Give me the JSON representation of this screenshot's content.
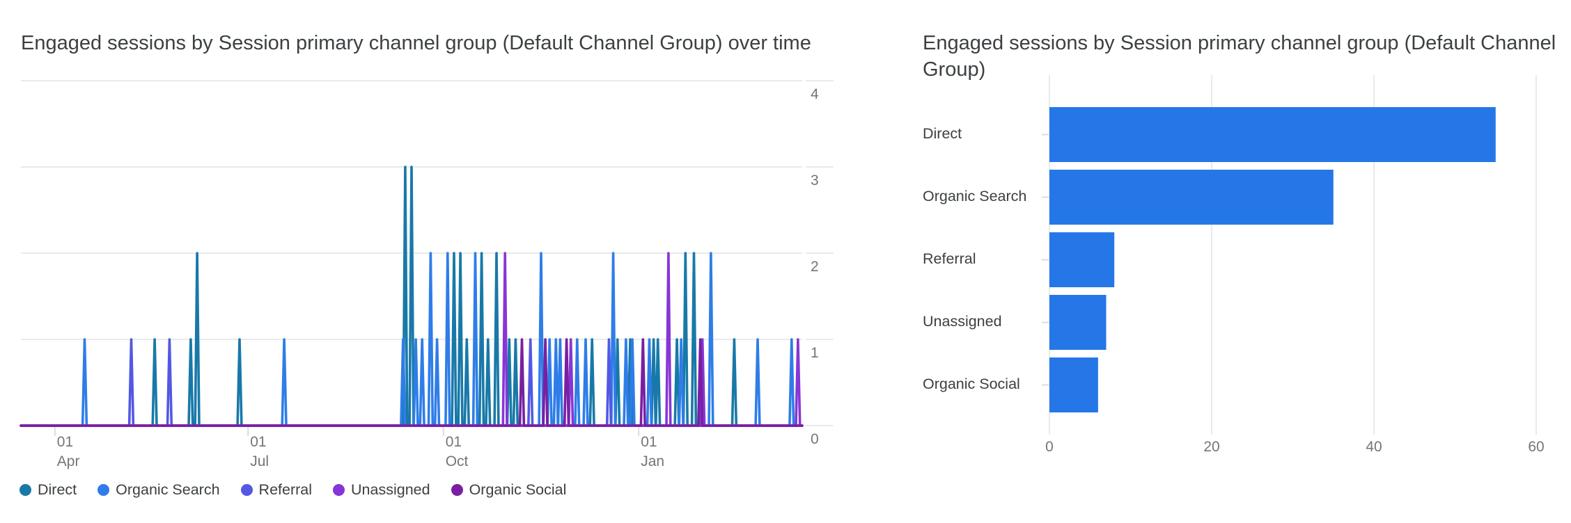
{
  "chart_data": [
    {
      "type": "line",
      "title": "Engaged sessions by Session primary channel group (Default Channel Group) over time",
      "x_axis": {
        "unit": "day_index",
        "total_days": 368,
        "ticks": [
          {
            "day": 16,
            "line1": "01",
            "line2": "Apr"
          },
          {
            "day": 107,
            "line1": "01",
            "line2": "Jul"
          },
          {
            "day": 199,
            "line1": "01",
            "line2": "Oct"
          },
          {
            "day": 291,
            "line1": "01",
            "line2": "Jan"
          }
        ]
      },
      "y_axis": {
        "min": 0,
        "max": 4,
        "ticks": [
          "0",
          "1",
          "2",
          "3",
          "4"
        ]
      },
      "grid": true,
      "legend_position": "bottom",
      "series": [
        {
          "name": "Direct",
          "color": "#1879A8",
          "baseline": 0,
          "spikes": [
            [
              63,
              1
            ],
            [
              80,
              1
            ],
            [
              83,
              2
            ],
            [
              103,
              1
            ],
            [
              181,
              3
            ],
            [
              184,
              3
            ],
            [
              204,
              2
            ],
            [
              207,
              2
            ],
            [
              210,
              1
            ],
            [
              217,
              2
            ],
            [
              220,
              1
            ],
            [
              224,
              2
            ],
            [
              230,
              1
            ],
            [
              233,
              1
            ],
            [
              269,
              1
            ],
            [
              281,
              1
            ],
            [
              287,
              1
            ],
            [
              298,
              1
            ],
            [
              300,
              1
            ],
            [
              309,
              1
            ],
            [
              313,
              2
            ],
            [
              317,
              2
            ],
            [
              336,
              1
            ]
          ]
        },
        {
          "name": "Organic Search",
          "color": "#2E7DE9",
          "baseline": 0,
          "spikes": [
            [
              30,
              1
            ],
            [
              124,
              1
            ],
            [
              180,
              1
            ],
            [
              186,
              1
            ],
            [
              189,
              1
            ],
            [
              193,
              2
            ],
            [
              196,
              1
            ],
            [
              201,
              2
            ],
            [
              214,
              2
            ],
            [
              245,
              2
            ],
            [
              249,
              1
            ],
            [
              252,
              1
            ],
            [
              254,
              1
            ],
            [
              262,
              1
            ],
            [
              266,
              1
            ],
            [
              279,
              2
            ],
            [
              285,
              1
            ],
            [
              288,
              1
            ],
            [
              296,
              1
            ],
            [
              311,
              1
            ],
            [
              325,
              2
            ],
            [
              347,
              1
            ],
            [
              363,
              1
            ]
          ]
        },
        {
          "name": "Referral",
          "color": "#5358E2",
          "baseline": 0,
          "spikes": [
            [
              52,
              1
            ],
            [
              70,
              1
            ],
            [
              240,
              1
            ],
            [
              277,
              1
            ]
          ]
        },
        {
          "name": "Unassigned",
          "color": "#8636D6",
          "baseline": 0,
          "spikes": [
            [
              228,
              2
            ],
            [
              259,
              1
            ],
            [
              305,
              2
            ],
            [
              321,
              1
            ],
            [
              366,
              1
            ]
          ]
        },
        {
          "name": "Organic Social",
          "color": "#7A1FA2",
          "baseline": 0,
          "spikes": [
            [
              236,
              1
            ],
            [
              247,
              1
            ],
            [
              257,
              1
            ],
            [
              293,
              1
            ],
            [
              320,
              1
            ]
          ]
        }
      ]
    },
    {
      "type": "bar",
      "orientation": "horizontal",
      "title": "Engaged sessions by Session primary channel group (Default Channel Group)",
      "title_lines": [
        "Engaged sessions by Session primary channel group (Default Channel",
        "Group)"
      ],
      "categories": [
        "Direct",
        "Organic Search",
        "Referral",
        "Unassigned",
        "Organic Social"
      ],
      "values": [
        55,
        35,
        8,
        7,
        6
      ],
      "bar_color": "#2577E8",
      "xlim": [
        0,
        60
      ],
      "x_ticks": [
        "0",
        "20",
        "40",
        "60"
      ],
      "grid": true
    }
  ],
  "colors": {
    "title_text": "#3C4043",
    "axis_text": "#757575",
    "gridline": "#E8EAED",
    "tick": "#DADCE0",
    "background": "#FFFFFF"
  }
}
